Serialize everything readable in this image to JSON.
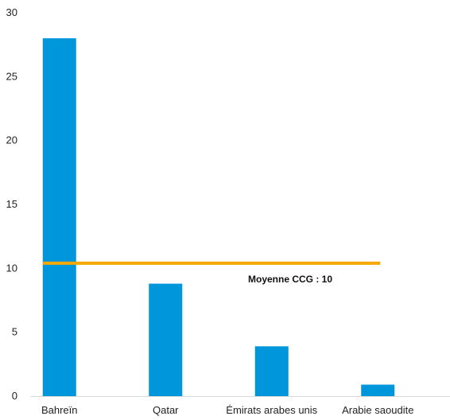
{
  "chart_data": {
    "type": "bar",
    "title": "",
    "xlabel": "",
    "ylabel": "",
    "categories": [
      "Bahreïn",
      "Qatar",
      "Émirats arabes unis",
      "Arabie saoudite"
    ],
    "values": [
      28,
      8.8,
      3.9,
      0.9
    ],
    "ylim": [
      0,
      30
    ],
    "yticks": [
      0,
      5,
      10,
      15,
      20,
      25,
      30
    ],
    "yticks_labels": [
      "0",
      "5",
      "10",
      "15",
      "20",
      "25",
      "30"
    ],
    "grid": false,
    "bar_color": "#0096DC",
    "reference_line": {
      "value": 10.4,
      "label": "Moyenne CCG : 10",
      "color": "#F5A800"
    }
  }
}
